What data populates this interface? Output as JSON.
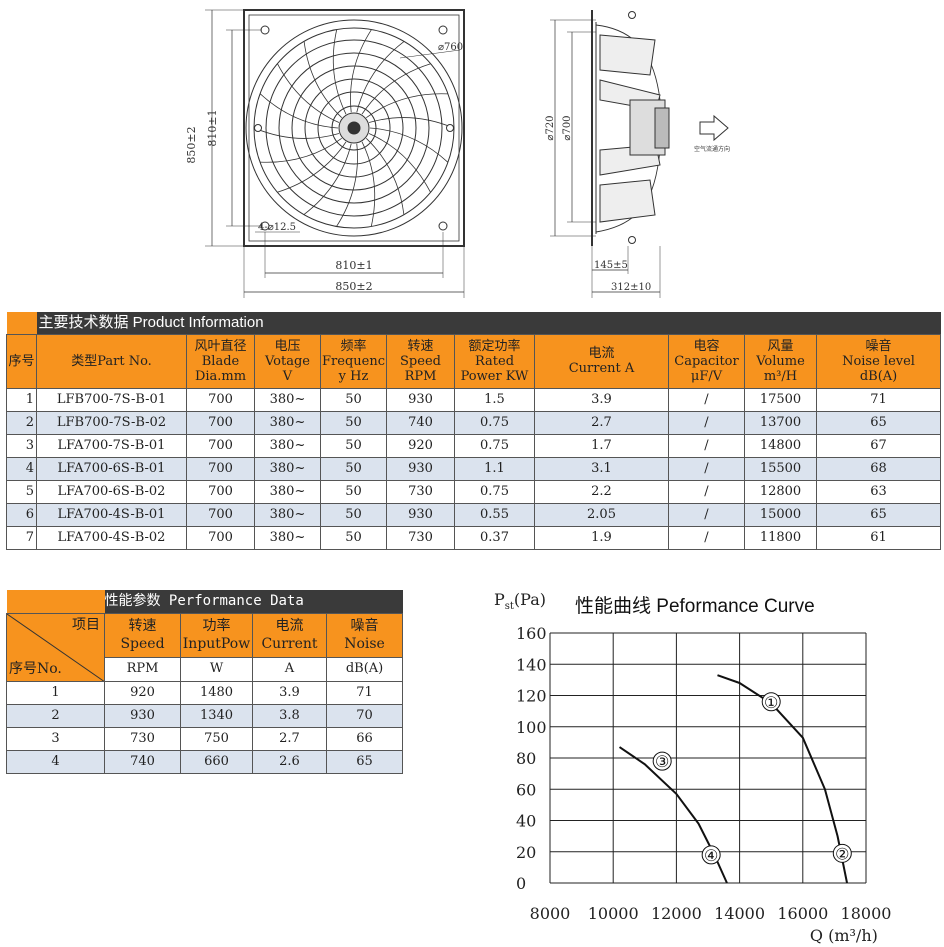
{
  "drawing": {
    "front": {
      "dia_outer": "⌀760",
      "height_outer": "850±2",
      "height_inner": "810±1",
      "width_inner": "810±1",
      "width_outer": "850±2",
      "holes": "4-⌀12.5"
    },
    "side": {
      "dia1": "⌀720",
      "dia2": "⌀700",
      "depth1": "145±5",
      "depth2": "312±10",
      "airflow": "空气流通方向"
    }
  },
  "product": {
    "title": "主要技术数据 Product Information",
    "headers": [
      {
        "l1": "序号",
        "l2": "",
        "l3": ""
      },
      {
        "l1": "类型Part No.",
        "l2": "",
        "l3": ""
      },
      {
        "l1": "风叶直径",
        "l2": "Blade",
        "l3": "Dia.mm"
      },
      {
        "l1": "电压",
        "l2": "Votage",
        "l3": "V"
      },
      {
        "l1": "频率",
        "l2": "Frequenc",
        "l3": "y Hz"
      },
      {
        "l1": "转速",
        "l2": "Speed",
        "l3": "RPM"
      },
      {
        "l1": "额定功率",
        "l2": "Rated",
        "l3": "Power KW"
      },
      {
        "l1": "电流",
        "l2": "Current A",
        "l3": ""
      },
      {
        "l1": "电容",
        "l2": "Capacitor",
        "l3": "μF/V"
      },
      {
        "l1": "风量",
        "l2": "Volume",
        "l3": "m³/H"
      },
      {
        "l1": "噪音",
        "l2": "Noise level",
        "l3": "dB(A)"
      }
    ],
    "rows": [
      [
        "1",
        "LFB700-7S-B-01",
        "700",
        "380~",
        "50",
        "930",
        "1.5",
        "3.9",
        "/",
        "17500",
        "71"
      ],
      [
        "2",
        "LFB700-7S-B-02",
        "700",
        "380~",
        "50",
        "740",
        "0.75",
        "2.7",
        "/",
        "13700",
        "65"
      ],
      [
        "3",
        "LFA700-7S-B-01",
        "700",
        "380~",
        "50",
        "920",
        "0.75",
        "1.7",
        "/",
        "14800",
        "67"
      ],
      [
        "4",
        "LFA700-6S-B-01",
        "700",
        "380~",
        "50",
        "930",
        "1.1",
        "3.1",
        "/",
        "15500",
        "68"
      ],
      [
        "5",
        "LFA700-6S-B-02",
        "700",
        "380~",
        "50",
        "730",
        "0.75",
        "2.2",
        "/",
        "12800",
        "63"
      ],
      [
        "6",
        "LFA700-4S-B-01",
        "700",
        "380~",
        "50",
        "930",
        "0.55",
        "2.05",
        "/",
        "15000",
        "65"
      ],
      [
        "7",
        "LFA700-4S-B-02",
        "700",
        "380~",
        "50",
        "730",
        "0.37",
        "1.9",
        "/",
        "11800",
        "61"
      ]
    ]
  },
  "performance": {
    "title": "性能参数 Performance Data",
    "corner_top": "项目",
    "corner_bottom": "序号No.",
    "headers": [
      {
        "l1": "转速",
        "l2": "Speed",
        "unit": "RPM"
      },
      {
        "l1": "功率",
        "l2": "InputPow",
        "unit": "W"
      },
      {
        "l1": "电流",
        "l2": "Current",
        "unit": "A"
      },
      {
        "l1": "噪音",
        "l2": "Noise",
        "unit": "dB(A)"
      }
    ],
    "rows": [
      [
        "1",
        "920",
        "1480",
        "3.9",
        "71"
      ],
      [
        "2",
        "930",
        "1340",
        "3.8",
        "70"
      ],
      [
        "3",
        "730",
        "750",
        "2.7",
        "66"
      ],
      [
        "4",
        "740",
        "660",
        "2.6",
        "65"
      ]
    ]
  },
  "chart_data": {
    "type": "line",
    "title": "性能曲线 Peformance Curve",
    "ylabel_main": "P",
    "ylabel_sub": "st",
    "ylabel_unit": "(Pa)",
    "xlabel": "Q (m³/h)",
    "xlim": [
      8000,
      18000
    ],
    "ylim": [
      0,
      160
    ],
    "xticks": [
      "8000",
      "10000",
      "12000",
      "14000",
      "16000",
      "18000"
    ],
    "yticks": [
      "0",
      "20",
      "40",
      "60",
      "80",
      "100",
      "120",
      "140",
      "160"
    ],
    "grid": true,
    "series": [
      {
        "name": "①",
        "points": [
          [
            13300,
            133
          ],
          [
            14000,
            128
          ],
          [
            15000,
            115
          ],
          [
            16000,
            93
          ],
          [
            16700,
            60
          ],
          [
            17100,
            30
          ],
          [
            17400,
            0
          ]
        ]
      },
      {
        "name": "③",
        "points": [
          [
            10200,
            87
          ],
          [
            11000,
            76
          ],
          [
            12000,
            57
          ],
          [
            12700,
            38
          ],
          [
            13200,
            18
          ],
          [
            13600,
            0
          ]
        ]
      }
    ],
    "labels": [
      {
        "text": "①",
        "x": 15000,
        "y": 116
      },
      {
        "text": "②",
        "x": 17250,
        "y": 19
      },
      {
        "text": "③",
        "x": 11550,
        "y": 78
      },
      {
        "text": "④",
        "x": 13100,
        "y": 18
      }
    ]
  }
}
